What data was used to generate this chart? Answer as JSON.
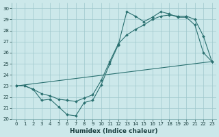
{
  "background_color": "#cce8ea",
  "grid_color": "#9fc8cc",
  "line_color": "#2a7070",
  "xlabel": "Humidex (Indice chaleur)",
  "xlim": [
    -0.5,
    23.5
  ],
  "ylim": [
    20,
    30.5
  ],
  "xticks": [
    0,
    1,
    2,
    3,
    4,
    5,
    6,
    7,
    8,
    9,
    10,
    11,
    12,
    13,
    14,
    15,
    16,
    17,
    18,
    19,
    20,
    21,
    22,
    23
  ],
  "yticks": [
    20,
    21,
    22,
    23,
    24,
    25,
    26,
    27,
    28,
    29,
    30
  ],
  "line1_x": [
    0,
    1,
    2,
    3,
    4,
    5,
    6,
    7,
    8,
    9,
    10,
    11,
    12,
    13,
    14,
    15,
    16,
    17,
    18,
    19,
    20,
    21,
    22,
    23
  ],
  "line1_y": [
    23.0,
    23.0,
    22.7,
    21.7,
    21.8,
    21.1,
    20.4,
    20.3,
    21.5,
    21.7,
    23.1,
    25.0,
    26.7,
    29.7,
    29.3,
    28.8,
    29.2,
    29.7,
    29.5,
    29.2,
    29.2,
    28.5,
    26.0,
    25.2
  ],
  "line2_x": [
    0,
    1,
    2,
    3,
    4,
    5,
    6,
    7,
    8,
    9,
    10,
    11,
    12,
    13,
    14,
    15,
    16,
    17,
    18,
    19,
    20,
    21,
    22,
    23
  ],
  "line2_y": [
    23.0,
    23.0,
    22.7,
    22.3,
    22.1,
    21.8,
    21.7,
    21.6,
    21.9,
    22.2,
    23.5,
    25.2,
    26.8,
    27.6,
    28.1,
    28.5,
    29.0,
    29.3,
    29.4,
    29.3,
    29.3,
    29.0,
    27.5,
    25.2
  ],
  "line3_x": [
    0,
    23
  ],
  "line3_y": [
    23.0,
    25.2
  ]
}
